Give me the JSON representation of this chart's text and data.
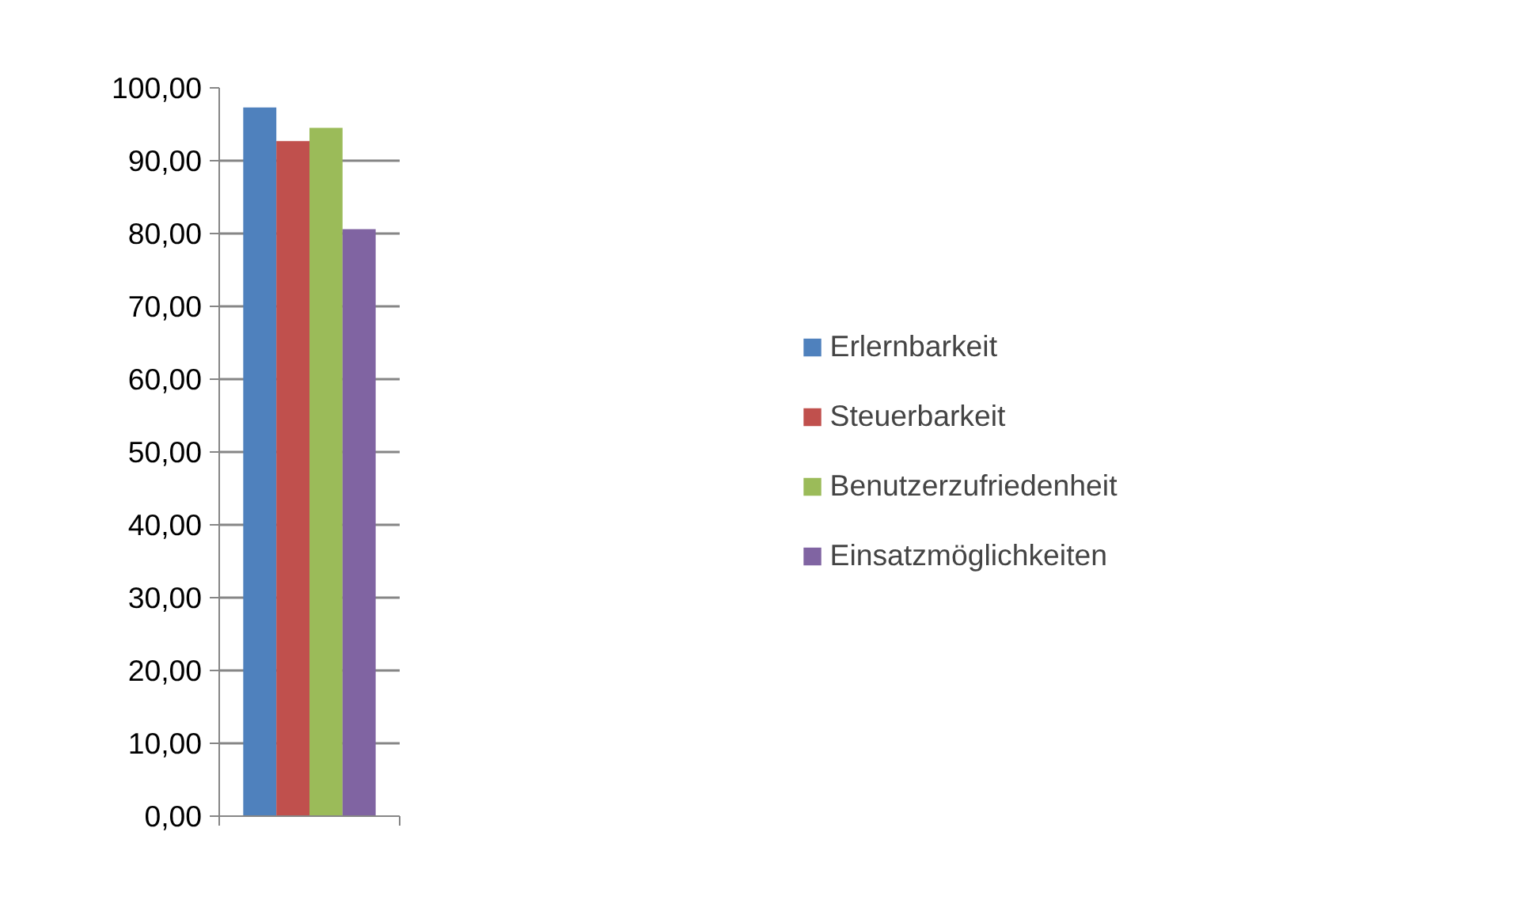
{
  "chart_data": {
    "type": "bar",
    "categories": [
      null
    ],
    "series": [
      {
        "name": "Erlernbarkeit",
        "color": "#4f81bd",
        "values": [
          97.3
        ]
      },
      {
        "name": "Steuerbarkeit",
        "color": "#c0504d",
        "values": [
          92.7
        ]
      },
      {
        "name": "Benutzerzufriedenheit",
        "color": "#9bbb59",
        "values": [
          94.5
        ]
      },
      {
        "name": "Einsatzmöglichkeiten",
        "color": "#8064a2",
        "values": [
          80.6
        ]
      }
    ],
    "ylim": [
      0,
      100
    ],
    "yticks": [
      {
        "value": 0,
        "label": "0,00"
      },
      {
        "value": 10,
        "label": "10,00"
      },
      {
        "value": 20,
        "label": "20,00"
      },
      {
        "value": 30,
        "label": "30,00"
      },
      {
        "value": 40,
        "label": "40,00"
      },
      {
        "value": 50,
        "label": "50,00"
      },
      {
        "value": 60,
        "label": "60,00"
      },
      {
        "value": 70,
        "label": "70,00"
      },
      {
        "value": 80,
        "label": "80,00"
      },
      {
        "value": 90,
        "label": "90,00"
      },
      {
        "value": 100,
        "label": "100,00"
      }
    ],
    "grid": "y",
    "legend": "right"
  }
}
